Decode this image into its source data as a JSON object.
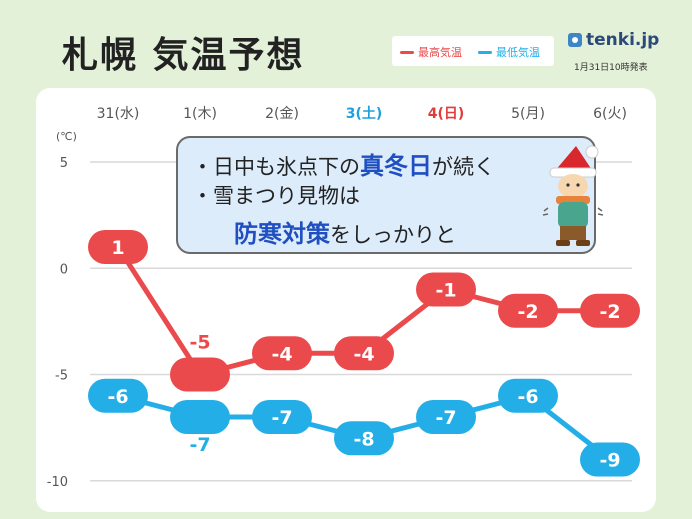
{
  "header": {
    "title": "札幌 気温予想",
    "legend_high": "最高気温",
    "legend_low": "最低気温",
    "brand": "tenki.jp",
    "published": "1月31日10時発表"
  },
  "callout": {
    "bullet1_before": "・日中も氷点下の",
    "bullet1_highlight": "真冬日",
    "bullet1_after": "が続く",
    "bullet2": "・雪まつり見物は",
    "bullet3_highlight": "防寒対策",
    "bullet3_after": "をしっかりと"
  },
  "colors": {
    "high": "#ea4a4b",
    "low": "#24aee8",
    "saturday": "#1e9fe0",
    "sunday": "#e23b3b",
    "weekday": "#555555"
  },
  "chart_data": {
    "type": "line",
    "unit_label": "(℃)",
    "categories": [
      "31(水)",
      "1(木)",
      "2(金)",
      "3(土)",
      "4(日)",
      "5(月)",
      "6(火)"
    ],
    "category_colors": [
      "weekday",
      "weekday",
      "weekday",
      "saturday",
      "sunday",
      "weekday",
      "weekday"
    ],
    "series": [
      {
        "name": "最高気温",
        "color": "#ea4a4b",
        "values": [
          1,
          -5,
          -4,
          -4,
          -1,
          -2,
          -2
        ]
      },
      {
        "name": "最低気温",
        "color": "#24aee8",
        "values": [
          -6,
          -7,
          -7,
          -8,
          -7,
          -6,
          -9
        ]
      }
    ],
    "y_ticks": [
      5,
      0,
      -5,
      -10
    ],
    "ylim": [
      -10,
      5
    ],
    "grid": true
  }
}
